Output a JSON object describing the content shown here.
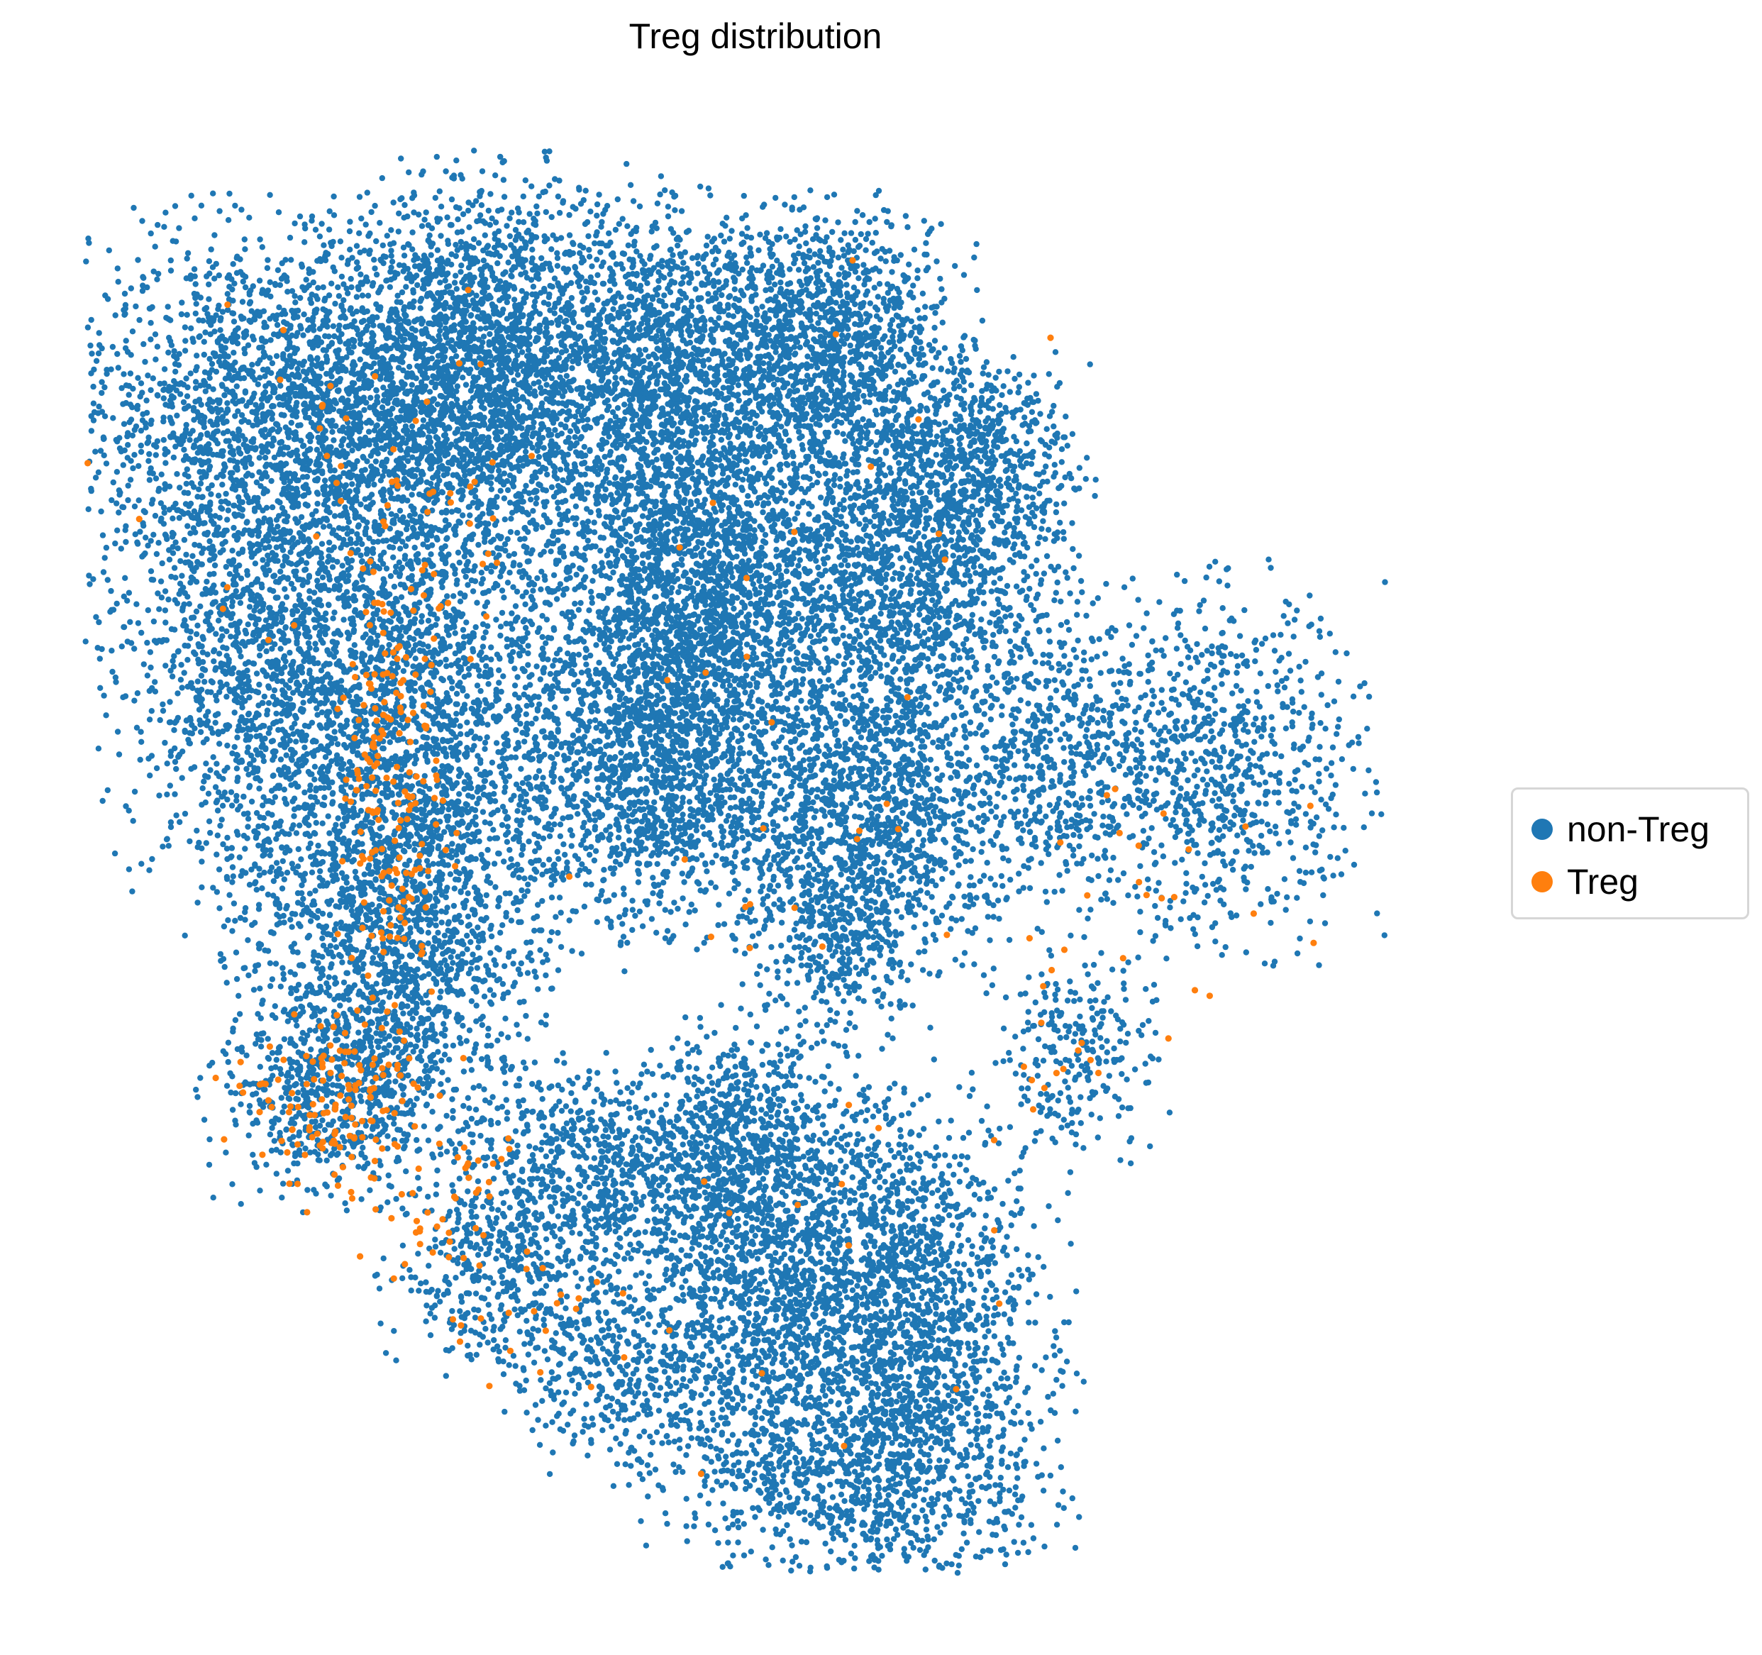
{
  "chart_data": {
    "type": "scatter",
    "title": "Treg distribution",
    "xlabel": "",
    "ylabel": "",
    "axes_visible": false,
    "grid": false,
    "legend_position": "right-center",
    "xlim": [
      0,
      100
    ],
    "ylim": [
      0,
      100
    ],
    "series": [
      {
        "name": "non-Treg",
        "color": "#1f77b4",
        "marker": "circle"
      },
      {
        "name": "Treg",
        "color": "#ff7f0e",
        "marker": "circle"
      }
    ],
    "regions": [
      {
        "series": "non-Treg",
        "x": 16,
        "y": 80,
        "sx": 8.5,
        "sy": 6.5,
        "count": 2600
      },
      {
        "series": "non-Treg",
        "x": 30,
        "y": 83,
        "sx": 5.5,
        "sy": 6.5,
        "count": 2100
      },
      {
        "series": "non-Treg",
        "x": 14,
        "y": 62,
        "sx": 5.5,
        "sy": 7.5,
        "count": 1500
      },
      {
        "series": "non-Treg",
        "x": 26,
        "y": 59,
        "sx": 6,
        "sy": 8,
        "count": 1800
      },
      {
        "series": "non-Treg",
        "x": 23,
        "y": 43,
        "sx": 5.5,
        "sy": 6,
        "count": 1400
      },
      {
        "series": "non-Treg",
        "x": 19,
        "y": 33,
        "sx": 4.5,
        "sy": 3.5,
        "count": 600
      },
      {
        "series": "non-Treg",
        "x": 43,
        "y": 84,
        "sx": 4.5,
        "sy": 5,
        "count": 1200
      },
      {
        "series": "non-Treg",
        "x": 55,
        "y": 85,
        "sx": 5,
        "sy": 4.5,
        "count": 1400
      },
      {
        "series": "non-Treg",
        "x": 46,
        "y": 69,
        "sx": 5.5,
        "sy": 6,
        "count": 2200
      },
      {
        "series": "non-Treg",
        "x": 62,
        "y": 70,
        "sx": 5.5,
        "sy": 6.5,
        "count": 1800
      },
      {
        "series": "non-Treg",
        "x": 43,
        "y": 56,
        "sx": 5,
        "sy": 5.5,
        "count": 1500
      },
      {
        "series": "non-Treg",
        "x": 59,
        "y": 53,
        "sx": 5.5,
        "sy": 5,
        "count": 1300
      },
      {
        "series": "non-Treg",
        "x": 56,
        "y": 44,
        "sx": 3.2,
        "sy": 3.5,
        "count": 400
      },
      {
        "series": "non-Treg",
        "x": 73,
        "y": 56,
        "sx": 3.2,
        "sy": 5,
        "count": 350
      },
      {
        "series": "non-Treg",
        "x": 67,
        "y": 77,
        "sx": 3.5,
        "sy": 3,
        "count": 350
      },
      {
        "series": "non-Treg",
        "x": 84,
        "y": 56,
        "sx": 5.5,
        "sy": 6,
        "count": 900
      },
      {
        "series": "non-Treg",
        "x": 74,
        "y": 36,
        "sx": 3,
        "sy": 3.5,
        "count": 250
      },
      {
        "series": "non-Treg",
        "x": 50,
        "y": 31,
        "sx": 3.5,
        "sy": 3,
        "count": 300
      },
      {
        "series": "non-Treg",
        "x": 38,
        "y": 28,
        "sx": 5,
        "sy": 3.5,
        "count": 650
      },
      {
        "series": "non-Treg",
        "x": 52,
        "y": 20,
        "sx": 6,
        "sy": 7,
        "count": 1800
      },
      {
        "series": "non-Treg",
        "x": 62,
        "y": 17,
        "sx": 5,
        "sy": 7,
        "count": 1400
      },
      {
        "series": "non-Treg",
        "x": 58,
        "y": 6,
        "sx": 7,
        "sy": 3.5,
        "count": 700
      },
      {
        "series": "non-Treg",
        "x": 31,
        "y": 21,
        "sx": 4,
        "sy": 3.5,
        "count": 450
      },
      {
        "series": "non-Treg",
        "x": 40,
        "y": 14,
        "sx": 4,
        "sy": 3,
        "count": 350
      },
      {
        "series": "non-Treg",
        "x": 47,
        "y": 29,
        "sx": 2.5,
        "sy": 4.5,
        "count": 250
      },
      {
        "series": "Treg",
        "x": 23,
        "y": 53,
        "sx": 2.2,
        "sy": 8,
        "count": 170
      },
      {
        "series": "Treg",
        "x": 19,
        "y": 33,
        "sx": 4,
        "sy": 3.5,
        "count": 130
      },
      {
        "series": "Treg",
        "x": 27,
        "y": 26,
        "sx": 3,
        "sy": 3,
        "count": 45
      },
      {
        "series": "Treg",
        "x": 25,
        "y": 75,
        "sx": 4.5,
        "sy": 6,
        "count": 40
      },
      {
        "series": "Treg",
        "x": 34,
        "y": 18,
        "sx": 4,
        "sy": 2.5,
        "count": 22
      },
      {
        "series": "Treg",
        "x": 50,
        "y": 60,
        "sx": 14,
        "sy": 15,
        "count": 35
      },
      {
        "series": "Treg",
        "x": 80,
        "y": 46,
        "sx": 7,
        "sy": 4,
        "count": 22
      },
      {
        "series": "Treg",
        "x": 72,
        "y": 34,
        "sx": 2,
        "sy": 2,
        "count": 12
      },
      {
        "series": "Treg",
        "x": 15,
        "y": 70,
        "sx": 7,
        "sy": 10,
        "count": 18
      },
      {
        "series": "Treg",
        "x": 57,
        "y": 18,
        "sx": 8,
        "sy": 8,
        "count": 12
      }
    ]
  }
}
